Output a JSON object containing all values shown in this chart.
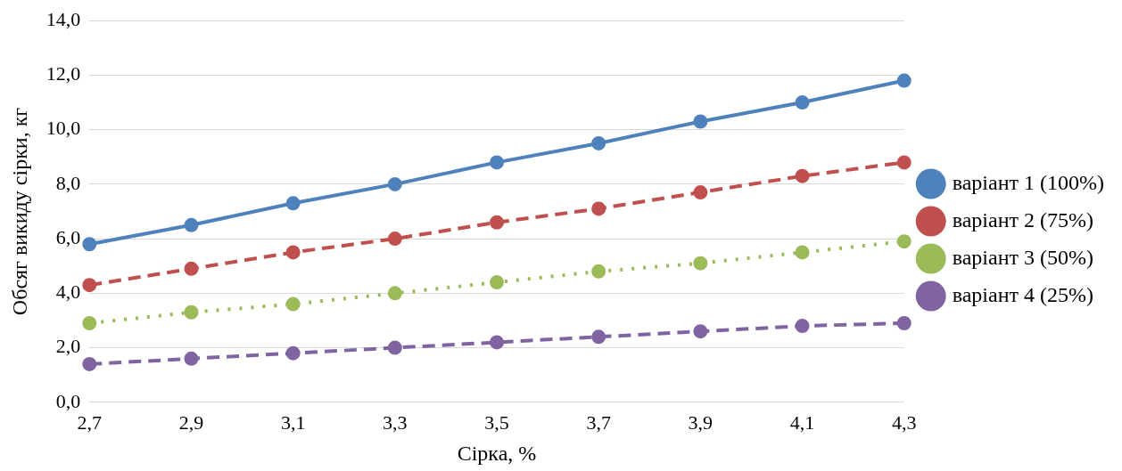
{
  "chart_data": {
    "type": "line",
    "xlabel": "Сірка, %",
    "ylabel": "Обсяг викиду сірки, кг",
    "categories": [
      "2,7",
      "2,9",
      "3,1",
      "3,3",
      "3,5",
      "3,7",
      "3,9",
      "4,1",
      "4,3"
    ],
    "series": [
      {
        "name": "варіант 1 (100%)",
        "color": "#4f81bd",
        "line_style": "solid",
        "values": [
          5.8,
          6.5,
          7.3,
          8.0,
          8.8,
          9.5,
          10.3,
          11.0,
          11.8
        ]
      },
      {
        "name": "варіант 2 (75%)",
        "color": "#c0504d",
        "line_style": "dashed",
        "values": [
          4.3,
          4.9,
          5.5,
          6.0,
          6.6,
          7.1,
          7.7,
          8.3,
          8.8
        ]
      },
      {
        "name": "варіант 3 (50%)",
        "color": "#9bbb59",
        "line_style": "dotted",
        "values": [
          2.9,
          3.3,
          3.6,
          4.0,
          4.4,
          4.8,
          5.1,
          5.5,
          5.9
        ]
      },
      {
        "name": "варіант 4 (25%)",
        "color": "#8064a2",
        "line_style": "dashed",
        "values": [
          1.4,
          1.6,
          1.8,
          2.0,
          2.2,
          2.4,
          2.6,
          2.8,
          2.9
        ]
      }
    ],
    "ylim": [
      0,
      14
    ],
    "yticks": [
      {
        "value": 0,
        "label": "0,0"
      },
      {
        "value": 2,
        "label": "2,0"
      },
      {
        "value": 4,
        "label": "4,0"
      },
      {
        "value": 6,
        "label": "6,0"
      },
      {
        "value": 8,
        "label": "8,0"
      },
      {
        "value": 10,
        "label": "10,0"
      },
      {
        "value": 12,
        "label": "12,0"
      },
      {
        "value": 14,
        "label": "14,0"
      }
    ],
    "grid": "y",
    "legend": "right",
    "marker": "circle"
  }
}
